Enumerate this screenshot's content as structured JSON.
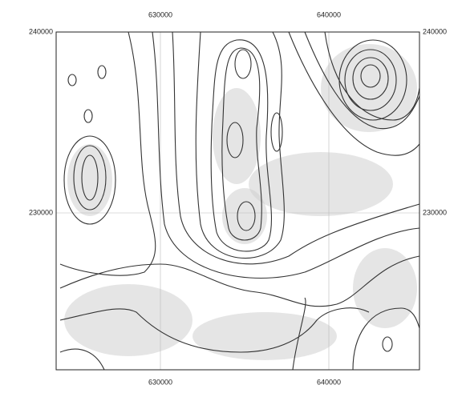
{
  "map": {
    "x_ticks": [
      "630000",
      "640000"
    ],
    "y_ticks": [
      "240000",
      "230000"
    ]
  }
}
